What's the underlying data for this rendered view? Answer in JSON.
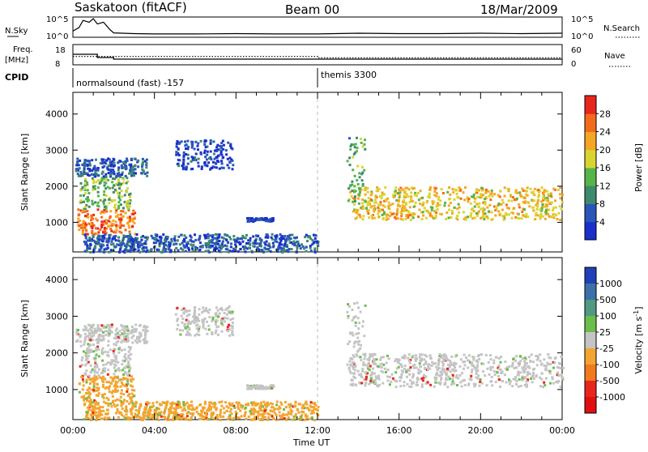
{
  "header": {
    "station": "Saskatoon (fitACF)",
    "beam": "Beam 00",
    "date": "18/Mar/2009"
  },
  "noise_panel": {
    "left_label": "N.Sky",
    "right_label": "N.Search",
    "left_ticks": [
      "10^5",
      "10^0"
    ],
    "right_ticks": [
      "10^5",
      "10^0"
    ],
    "series": [
      {
        "name": "N.Sky",
        "x_hours": [
          0,
          0.3,
          0.5,
          0.8,
          1.0,
          1.2,
          1.5,
          1.8,
          2,
          3,
          4,
          6,
          8,
          10,
          12,
          14,
          16,
          18,
          20,
          22,
          24
        ],
        "log10": [
          1.5,
          2.5,
          4.5,
          4.0,
          5.0,
          3.5,
          4.0,
          2.0,
          1.0,
          0.8,
          0.7,
          0.7,
          0.8,
          0.7,
          0.7,
          0.9,
          0.8,
          0.8,
          0.9,
          0.8,
          0.9
        ]
      }
    ]
  },
  "freq_panel": {
    "left_label": "Freq.",
    "left_unit": "[MHz]",
    "right_label": "Nave",
    "left_ticks": [
      "18",
      "8"
    ],
    "right_ticks": [
      "60",
      "0"
    ],
    "freq_mhz": {
      "x_hours": [
        0,
        1.2,
        1.2,
        2.0,
        2.0,
        24
      ],
      "values": [
        13.5,
        13.5,
        11.5,
        11.5,
        10.5,
        10.5
      ]
    },
    "nave": {
      "x_hours": [
        0,
        12,
        12,
        24
      ],
      "values": [
        25,
        25,
        20,
        20
      ]
    }
  },
  "cpid": {
    "label": "CPID",
    "segments": [
      {
        "start_hours": 0,
        "name": "normalsound (fast) -157"
      },
      {
        "start_hours": 12,
        "name": "themis 3300"
      }
    ]
  },
  "chart_data": [
    {
      "type": "heatmap",
      "title": "Power",
      "ylabel": "Slant Range [km]",
      "xlim_hours": [
        0,
        24
      ],
      "ylim_km": [
        180,
        4600
      ],
      "y_ticks": [
        1000,
        2000,
        3000,
        4000
      ],
      "colorbar": {
        "label": "Power [dB]",
        "ticks": [
          4,
          8,
          12,
          16,
          20,
          24,
          28
        ],
        "colors": [
          "#1a2ecc",
          "#2a56b8",
          "#3d8a6e",
          "#55b548",
          "#d9d530",
          "#f5a623",
          "#f46a1d",
          "#e8261b"
        ]
      },
      "regions": [
        {
          "name": "early-echo",
          "t": [
            0.2,
            3.0
          ],
          "r": [
            700,
            1400
          ],
          "level": 28
        },
        {
          "name": "early-diagonal",
          "t": [
            0.3,
            2.8
          ],
          "r": [
            1400,
            2300
          ],
          "level": 16
        },
        {
          "name": "high-band-early",
          "t": [
            0.1,
            3.6
          ],
          "r": [
            2300,
            2800
          ],
          "level": 8
        },
        {
          "name": "mid-patch",
          "t": [
            5.0,
            7.8
          ],
          "r": [
            2500,
            3300
          ],
          "level": 6
        },
        {
          "name": "small-patch",
          "t": [
            8.5,
            9.8
          ],
          "r": [
            1050,
            1150
          ],
          "level": 6
        },
        {
          "name": "ground-scatter",
          "t": [
            0.5,
            12
          ],
          "r": [
            200,
            700
          ],
          "level": 8
        },
        {
          "name": "late-band",
          "t": [
            13.5,
            24
          ],
          "r": [
            1100,
            2000
          ],
          "level": 22
        },
        {
          "name": "late-spike",
          "t": [
            13.4,
            14.3
          ],
          "r": [
            1600,
            3400
          ],
          "level": 14
        }
      ]
    },
    {
      "type": "heatmap",
      "title": "Velocity",
      "ylabel": "Slant Range [km]",
      "xlabel": "Time UT",
      "xlim_hours": [
        0,
        24
      ],
      "ylim_km": [
        180,
        4600
      ],
      "y_ticks": [
        1000,
        2000,
        3000,
        4000
      ],
      "x_ticks": [
        "00:00",
        "04:00",
        "08:00",
        "12:00",
        "16:00",
        "20:00",
        "00:00"
      ],
      "colorbar": {
        "label": "Velocity [m s",
        "exponent": "-1",
        "ticks": [
          1000,
          500,
          100,
          25,
          -25,
          -100,
          -500,
          -1000
        ],
        "colors": [
          "#2040b8",
          "#3c70a8",
          "#4f9a80",
          "#6cbe4a",
          "#c4c4c4",
          "#f2a530",
          "#f07a1d",
          "#e8261b",
          "#e01010"
        ]
      },
      "regions": [
        {
          "name": "early-echo",
          "t": [
            0.2,
            3.0
          ],
          "r": [
            700,
            1400
          ],
          "v": -100
        },
        {
          "name": "early-diagonal",
          "t": [
            0.3,
            2.8
          ],
          "r": [
            1400,
            2300
          ],
          "v": 0
        },
        {
          "name": "high-band-early",
          "t": [
            0.1,
            3.6
          ],
          "r": [
            2300,
            2800
          ],
          "v": 0
        },
        {
          "name": "mid-patch",
          "t": [
            5.0,
            7.8
          ],
          "r": [
            2500,
            3300
          ],
          "v": 0
        },
        {
          "name": "small-patch",
          "t": [
            8.5,
            9.8
          ],
          "r": [
            1050,
            1150
          ],
          "v": 0
        },
        {
          "name": "ground-scatter",
          "t": [
            0.5,
            12
          ],
          "r": [
            200,
            700
          ],
          "v": -100
        },
        {
          "name": "late-band",
          "t": [
            13.5,
            24
          ],
          "r": [
            1100,
            2000
          ],
          "v": 0
        },
        {
          "name": "late-spike",
          "t": [
            13.4,
            14.3
          ],
          "r": [
            1600,
            3400
          ],
          "v": 0
        }
      ]
    }
  ]
}
